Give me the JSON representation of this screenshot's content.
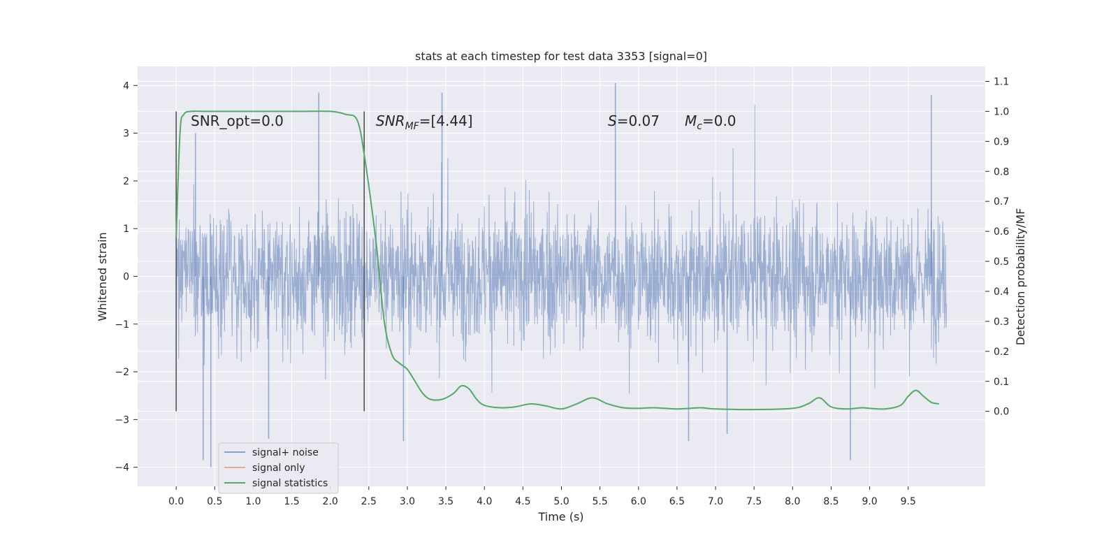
{
  "chart_data": {
    "type": "line",
    "title": "stats at each timestep for test data 3353 [signal=0]",
    "xlabel": "Time (s)",
    "ylabel": "Whitened strain",
    "ylabel_right": "Detection probability/MF",
    "xlim": [
      -0.5,
      10.5
    ],
    "ylim": [
      -4.4,
      4.4
    ],
    "ylim_right": [
      -0.25,
      1.15
    ],
    "x_ticks": [
      "0.0",
      "0.5",
      "1.0",
      "1.5",
      "2.0",
      "2.5",
      "3.0",
      "3.5",
      "4.0",
      "4.5",
      "5.0",
      "5.5",
      "6.0",
      "6.5",
      "7.0",
      "7.5",
      "8.0",
      "8.5",
      "9.0",
      "9.5"
    ],
    "y_ticks": [
      "4",
      "3",
      "2",
      "1",
      "0",
      "−1",
      "−2",
      "−3",
      "−4"
    ],
    "y_ticks_right": [
      "1.1",
      "1.0",
      "0.9",
      "0.8",
      "0.7",
      "0.6",
      "0.5",
      "0.4",
      "0.3",
      "0.2",
      "0.1",
      "0.0"
    ],
    "grid": true,
    "background": "#eaeaf2",
    "legend_position": "lower-left",
    "annotations": {
      "snr_opt": "SNR_opt=0.0",
      "snr_mf_main": "SNR",
      "snr_mf_sub": "MF",
      "snr_mf_value": "=[4.44]",
      "s_main": "S",
      "s_value": "=0.07",
      "mc_main": "M",
      "mc_sub": "c",
      "mc_value": "=0.0"
    },
    "vlines": [
      0.0,
      2.44
    ],
    "series": [
      {
        "name": "signal+ noise",
        "color": "#4c72b0",
        "axis": "left",
        "description": "Dense noise trace spanning 0.0 to 10.0 s",
        "x_range": [
          0.0,
          10.0
        ],
        "envelope_typical": [
          -1.3,
          1.3
        ],
        "envelope_frequent": [
          -2.0,
          2.0
        ],
        "peaks": [
          {
            "x": 0.35,
            "y": -3.85
          },
          {
            "x": 0.45,
            "y": -4.0
          },
          {
            "x": 1.85,
            "y": 3.85
          },
          {
            "x": 3.45,
            "y": 3.85
          },
          {
            "x": 5.7,
            "y": 4.05
          },
          {
            "x": 6.65,
            "y": -3.45
          },
          {
            "x": 8.75,
            "y": -3.85
          },
          {
            "x": 9.8,
            "y": 3.8
          },
          {
            "x": 1.2,
            "y": -3.4
          },
          {
            "x": 2.95,
            "y": -3.45
          },
          {
            "x": 0.25,
            "y": 3.0
          },
          {
            "x": 7.15,
            "y": -3.3
          }
        ]
      },
      {
        "name": "signal only",
        "color": "#dd8452",
        "axis": "left",
        "values": []
      },
      {
        "name": "signal statistics",
        "color": "#55a868",
        "axis": "right",
        "x": [
          0.0,
          0.05,
          0.1,
          0.2,
          0.4,
          0.8,
          1.2,
          1.6,
          2.0,
          2.2,
          2.35,
          2.45,
          2.6,
          2.7,
          2.8,
          2.9,
          3.0,
          3.1,
          3.2,
          3.3,
          3.45,
          3.6,
          3.7,
          3.8,
          3.9,
          4.0,
          4.2,
          4.4,
          4.6,
          4.8,
          5.0,
          5.2,
          5.4,
          5.6,
          5.8,
          6.0,
          6.2,
          6.5,
          6.8,
          7.0,
          7.5,
          8.0,
          8.2,
          8.35,
          8.5,
          8.7,
          8.9,
          9.0,
          9.2,
          9.4,
          9.5,
          9.6,
          9.7,
          9.8,
          9.9
        ],
        "values": [
          0.58,
          0.93,
          0.99,
          1.0,
          1.0,
          1.0,
          1.0,
          1.0,
          1.0,
          0.99,
          0.97,
          0.84,
          0.55,
          0.3,
          0.19,
          0.16,
          0.14,
          0.1,
          0.06,
          0.04,
          0.04,
          0.06,
          0.085,
          0.075,
          0.04,
          0.02,
          0.012,
          0.015,
          0.025,
          0.018,
          0.008,
          0.025,
          0.045,
          0.025,
          0.012,
          0.01,
          0.012,
          0.008,
          0.012,
          0.008,
          0.006,
          0.01,
          0.025,
          0.045,
          0.015,
          0.008,
          0.012,
          0.01,
          0.008,
          0.02,
          0.05,
          0.07,
          0.05,
          0.03,
          0.025
        ]
      }
    ]
  }
}
